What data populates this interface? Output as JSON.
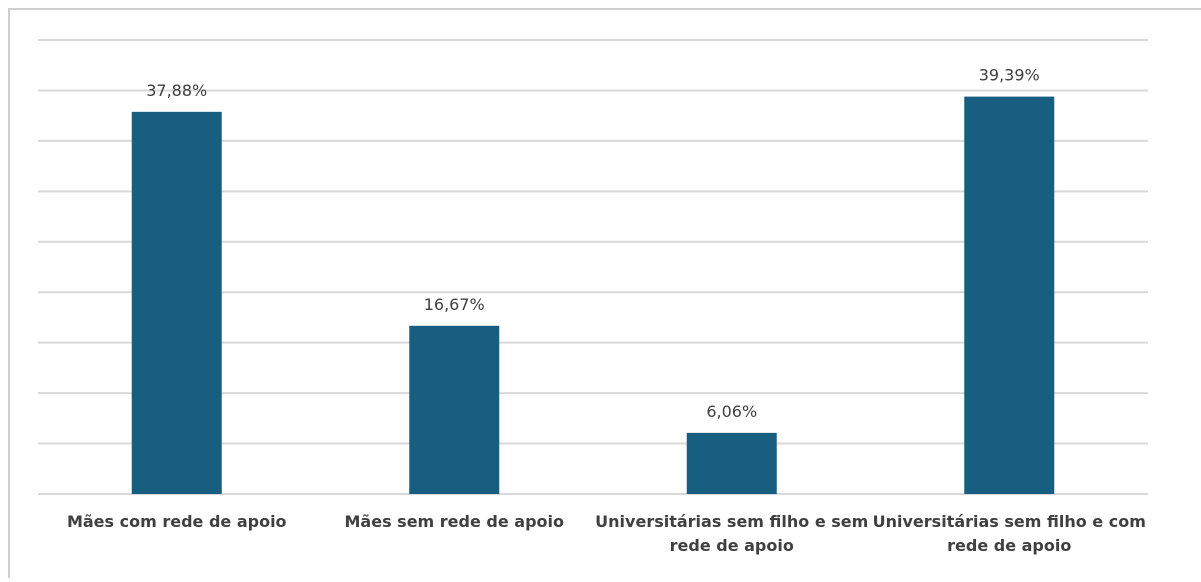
{
  "chart_data": {
    "type": "bar",
    "categories": [
      "Mães com rede de apoio",
      "Mães sem rede de apoio",
      "Universitárias sem filho e sem rede de apoio",
      "Universitárias sem filho e com rede de apoio"
    ],
    "values": [
      37.88,
      16.67,
      6.06,
      39.39
    ],
    "value_labels": [
      "37,88%",
      "16,67%",
      "6,06%",
      "39,39%"
    ],
    "color": "#175e80",
    "ylim": [
      0,
      45
    ],
    "yticks": [
      0,
      5,
      10,
      15,
      20,
      25,
      30,
      35,
      40,
      45
    ],
    "grid": true
  }
}
